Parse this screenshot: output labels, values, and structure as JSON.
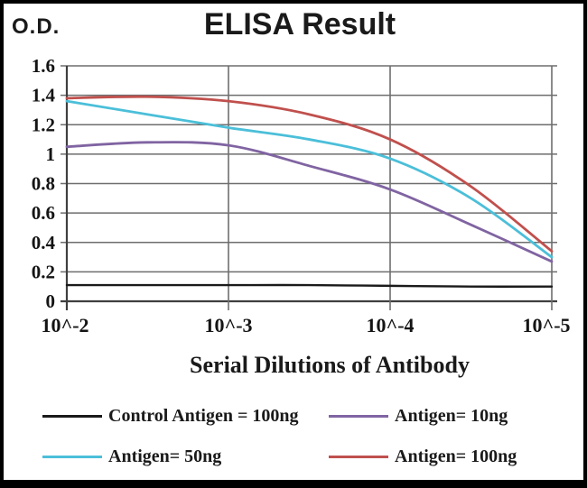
{
  "header": {
    "title": "ELISA Result",
    "y_axis_unit": "O.D."
  },
  "chart_data": {
    "type": "line",
    "title": "ELISA Result",
    "xlabel": "Serial Dilutions of Antibody",
    "ylabel": "O.D.",
    "x_tick_labels": [
      "10^-2",
      "10^-3",
      "10^-4",
      "10^-5"
    ],
    "x_tick_exponents": [
      -2,
      -3,
      -4,
      -5
    ],
    "x_scale": "log10-dilution, decreasing left to right",
    "y_ticks": [
      0,
      0.2,
      0.4,
      0.6,
      0.8,
      1,
      1.2,
      1.4,
      1.6
    ],
    "y_tick_labels": [
      "0",
      "0.2",
      "0.4",
      "0.6",
      "0.8",
      "1",
      "1.2",
      "1.4",
      "1.6"
    ],
    "ylim": [
      0,
      1.6
    ],
    "grid": true,
    "legend_position": "bottom",
    "x": [
      -2,
      -2.5,
      -3,
      -3.5,
      -4,
      -4.5,
      -5
    ],
    "series": [
      {
        "name": "Control Antigen = 100ng",
        "color": "#1a1a1a",
        "stroke_width": 2.4,
        "values": [
          0.11,
          0.11,
          0.11,
          0.11,
          0.105,
          0.1,
          0.1
        ]
      },
      {
        "name": "Antigen= 10ng",
        "color": "#8064a2",
        "stroke_width": 2.8,
        "values": [
          1.05,
          1.08,
          1.06,
          0.92,
          0.76,
          0.52,
          0.27
        ]
      },
      {
        "name": "Antigen= 50ng",
        "color": "#4bbfd9",
        "stroke_width": 2.8,
        "values": [
          1.36,
          1.27,
          1.18,
          1.1,
          0.97,
          0.7,
          0.3
        ]
      },
      {
        "name": "Antigen= 100ng",
        "color": "#c0504d",
        "stroke_width": 2.8,
        "values": [
          1.38,
          1.39,
          1.36,
          1.27,
          1.1,
          0.78,
          0.34
        ]
      }
    ],
    "colors": {
      "grid": "#6e6e6e",
      "axis": "#3f3f3f",
      "text": "#141414"
    }
  },
  "legend": {
    "items": [
      {
        "label": "Control Antigen = 100ng",
        "color": "#1a1a1a"
      },
      {
        "label": "Antigen= 10ng",
        "color": "#8064a2"
      },
      {
        "label": "Antigen= 50ng",
        "color": "#4bbfd9"
      },
      {
        "label": "Antigen= 100ng",
        "color": "#c0504d"
      }
    ]
  }
}
